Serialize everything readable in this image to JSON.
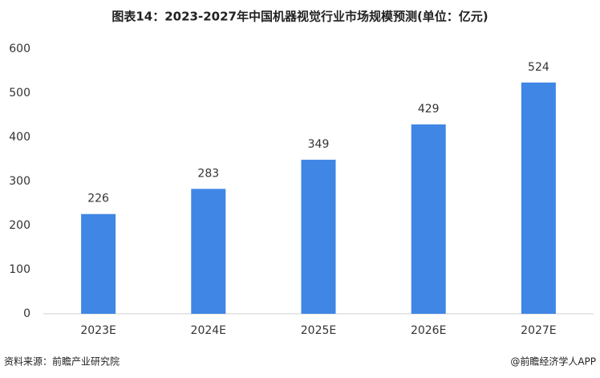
{
  "chart_data": {
    "type": "bar",
    "title": "图表14：2023-2027年中国机器视觉行业市场规模预测(单位：亿元)",
    "categories": [
      "2023E",
      "2024E",
      "2025E",
      "2026E",
      "2027E"
    ],
    "values": [
      226,
      283,
      349,
      429,
      524
    ],
    "color": "#3f86e5",
    "ylim": [
      0,
      600
    ],
    "yticks": [
      0,
      100,
      200,
      300,
      400,
      500,
      600
    ],
    "grid": false,
    "source": "资料来源：前瞻产业研究院",
    "credit": "@前瞻经济学人APP"
  }
}
